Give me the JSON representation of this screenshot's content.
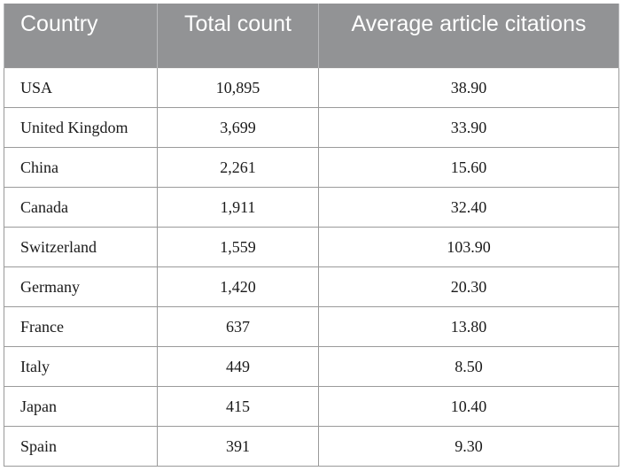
{
  "table": {
    "headers": [
      "Country",
      "Total count",
      "Average article citations"
    ],
    "rows": [
      [
        "USA",
        "10,895",
        "38.90"
      ],
      [
        "United Kingdom",
        "3,699",
        "33.90"
      ],
      [
        "China",
        "2,261",
        "15.60"
      ],
      [
        "Canada",
        "1,911",
        "32.40"
      ],
      [
        "Switzerland",
        "1,559",
        "103.90"
      ],
      [
        "Germany",
        "1,420",
        "20.30"
      ],
      [
        "France",
        "637",
        "13.80"
      ],
      [
        "Italy",
        "449",
        "8.50"
      ],
      [
        "Japan",
        "415",
        "10.40"
      ],
      [
        "Spain",
        "391",
        "9.30"
      ]
    ]
  }
}
